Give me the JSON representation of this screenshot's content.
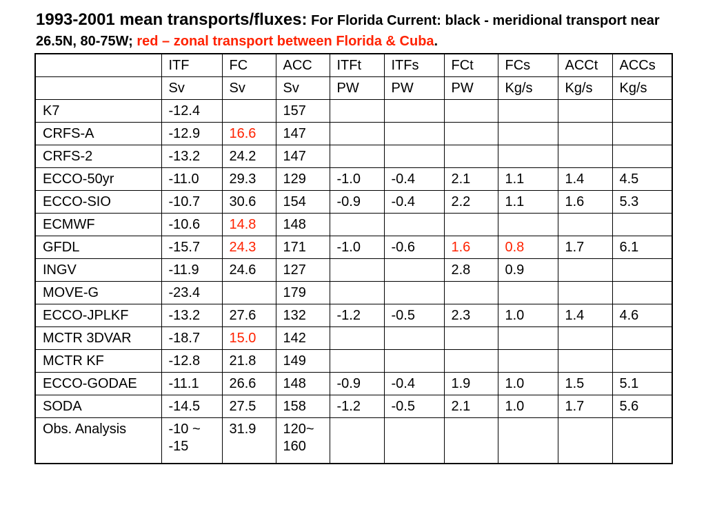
{
  "title": {
    "main": "1993-2001 mean transports/fluxes:",
    "sub_black_1": " For Florida Current: black - meridional transport near 26.5N, 80-75W; ",
    "sub_red": "red – zonal transport between Florida & Cuba",
    "sub_black_2": "."
  },
  "colors": {
    "highlight": "#ff2200",
    "text": "#000000",
    "border": "#000000"
  },
  "table": {
    "header": [
      "",
      "ITF",
      "FC",
      "ACC",
      "ITFt",
      "ITFs",
      "FCt",
      "FCs",
      "ACCt",
      "ACCs"
    ],
    "units": [
      "",
      "Sv",
      "Sv",
      "Sv",
      "PW",
      "PW",
      "PW",
      "Kg/s",
      "Kg/s",
      "Kg/s"
    ],
    "rows": [
      {
        "cells": [
          "K7",
          "-12.4",
          "",
          "157",
          "",
          "",
          "",
          "",
          "",
          ""
        ],
        "red": []
      },
      {
        "cells": [
          "CRFS-A",
          "-12.9",
          "16.6",
          "147",
          "",
          "",
          "",
          "",
          "",
          ""
        ],
        "red": [
          2
        ]
      },
      {
        "cells": [
          "CRFS-2",
          "-13.2",
          "24.2",
          "147",
          "",
          "",
          "",
          "",
          "",
          ""
        ],
        "red": []
      },
      {
        "cells": [
          "ECCO-50yr",
          "-11.0",
          "29.3",
          "129",
          "-1.0",
          "-0.4",
          "2.1",
          "1.1",
          "1.4",
          "4.5"
        ],
        "red": []
      },
      {
        "cells": [
          "ECCO-SIO",
          "-10.7",
          "30.6",
          "154",
          "-0.9",
          "-0.4",
          "2.2",
          "1.1",
          "1.6",
          "5.3"
        ],
        "red": []
      },
      {
        "cells": [
          "ECMWF",
          "-10.6",
          "14.8",
          "148",
          "",
          "",
          "",
          "",
          "",
          ""
        ],
        "red": [
          2
        ]
      },
      {
        "cells": [
          "GFDL",
          "-15.7",
          "24.3",
          "171",
          "-1.0",
          "-0.6",
          "1.6",
          "0.8",
          "1.7",
          "6.1"
        ],
        "red": [
          2,
          6,
          7
        ]
      },
      {
        "cells": [
          "INGV",
          "-11.9",
          "24.6",
          "127",
          "",
          "",
          "2.8",
          "0.9",
          "",
          ""
        ],
        "red": []
      },
      {
        "cells": [
          "MOVE-G",
          "-23.4",
          "",
          "179",
          "",
          "",
          "",
          "",
          "",
          ""
        ],
        "red": []
      },
      {
        "cells": [
          "ECCO-JPLKF",
          "-13.2",
          "27.6",
          "132",
          "-1.2",
          "-0.5",
          "2.3",
          "1.0",
          "1.4",
          "4.6"
        ],
        "red": []
      },
      {
        "cells": [
          "MCTR 3DVAR",
          "-18.7",
          "15.0",
          "142",
          "",
          "",
          "",
          "",
          "",
          ""
        ],
        "red": [
          2
        ]
      },
      {
        "cells": [
          "MCTR KF",
          "-12.8",
          "21.8",
          "149",
          "",
          "",
          "",
          "",
          "",
          ""
        ],
        "red": []
      },
      {
        "cells": [
          "ECCO-GODAE",
          "-11.1",
          "26.6",
          "148",
          "-0.9",
          "-0.4",
          "1.9",
          "1.0",
          "1.5",
          "5.1"
        ],
        "red": []
      },
      {
        "cells": [
          "SODA",
          "-14.5",
          "27.5",
          "158",
          "-1.2",
          "-0.5",
          "2.1",
          "1.0",
          "1.7",
          "5.6"
        ],
        "red": []
      },
      {
        "cells": [
          "Obs. Analysis",
          "-10 ~\n-15",
          "31.9",
          "120~\n160",
          "",
          "",
          "",
          "",
          "",
          ""
        ],
        "red": []
      }
    ]
  }
}
